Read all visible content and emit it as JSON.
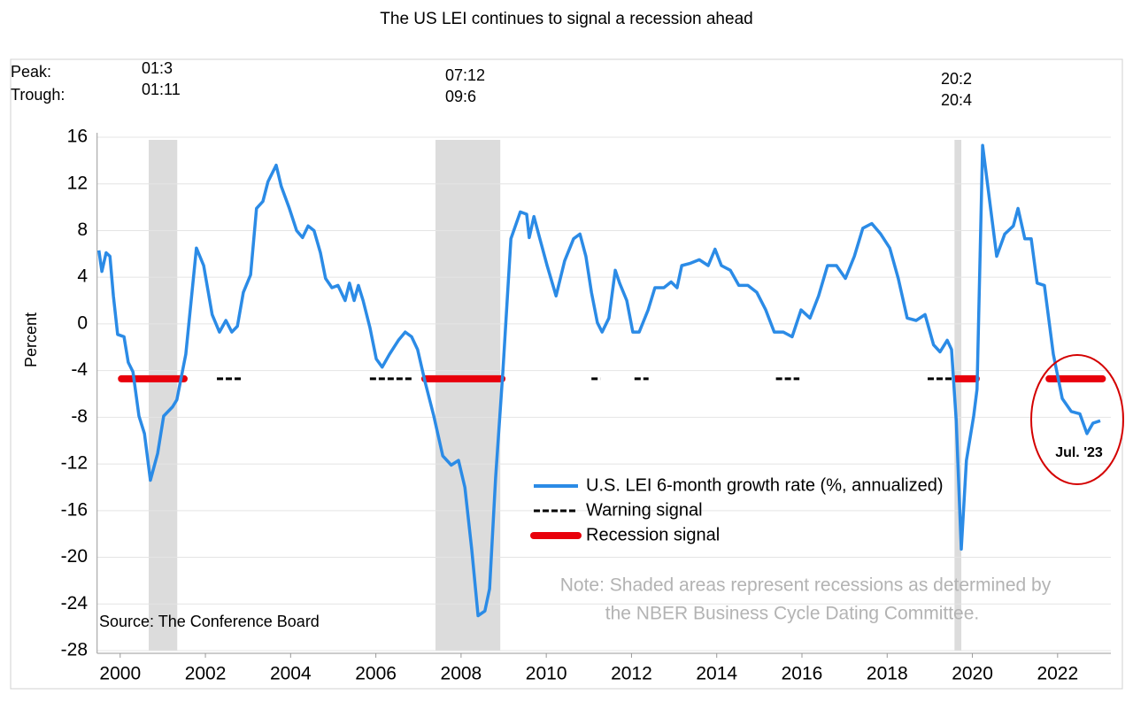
{
  "chart_data": {
    "type": "line",
    "title": "The US LEI continues to signal a recession ahead",
    "ylabel": "Percent",
    "source": "Source: The Conference Board",
    "note": [
      "Note: Shaded areas represent recessions as determined by",
      "the NBER Business Cycle Dating Committee."
    ],
    "annotation": "Jul. '23",
    "peak_label": "Peak:",
    "trough_label": "Trough:",
    "recessions": [
      {
        "start": 2001.17,
        "end": 2001.84,
        "peak": "01:3",
        "trough": "01:11"
      },
      {
        "start": 2007.9,
        "end": 2009.42,
        "peak": "07:12",
        "trough": "09:6"
      },
      {
        "start": 2020.08,
        "end": 2020.24,
        "peak": "20:2",
        "trough": "20:4"
      }
    ],
    "xlim": [
      2000,
      2023.75
    ],
    "xticks": [
      {
        "value": 2000.5,
        "label": "2000"
      },
      {
        "value": 2002.5,
        "label": "2002"
      },
      {
        "value": 2004.5,
        "label": "2004"
      },
      {
        "value": 2006.5,
        "label": "2006"
      },
      {
        "value": 2008.5,
        "label": "2008"
      },
      {
        "value": 2010.5,
        "label": "2010"
      },
      {
        "value": 2012.5,
        "label": "2012"
      },
      {
        "value": 2014.5,
        "label": "2014"
      },
      {
        "value": 2016.5,
        "label": "2016"
      },
      {
        "value": 2018.5,
        "label": "2018"
      },
      {
        "value": 2020.5,
        "label": "2020"
      },
      {
        "value": 2022.5,
        "label": "2022"
      }
    ],
    "ylim": [
      -28,
      16
    ],
    "yticks": [
      16,
      12,
      8,
      4,
      0,
      -4,
      -8,
      -12,
      -16,
      -20,
      -24,
      -28
    ],
    "grid": true,
    "series": [
      {
        "name": "U.S. LEI 6-month growth rate (%, annualized)",
        "color": "#2b8be6",
        "x": [
          2000.0,
          2000.07,
          2000.17,
          2000.26,
          2000.34,
          2000.44,
          2000.59,
          2000.69,
          2000.8,
          2000.94,
          2001.07,
          2001.21,
          2001.38,
          2001.52,
          2001.73,
          2001.83,
          2002.04,
          2002.29,
          2002.46,
          2002.66,
          2002.83,
          2002.98,
          2003.12,
          2003.25,
          2003.39,
          2003.56,
          2003.7,
          2003.85,
          2003.97,
          2004.16,
          2004.28,
          2004.47,
          2004.64,
          2004.78,
          2004.91,
          2005.05,
          2005.2,
          2005.32,
          2005.47,
          2005.61,
          2005.78,
          2005.88,
          2005.99,
          2006.09,
          2006.2,
          2006.36,
          2006.51,
          2006.65,
          2006.82,
          2007.03,
          2007.19,
          2007.34,
          2007.48,
          2007.65,
          2007.86,
          2008.07,
          2008.27,
          2008.44,
          2008.59,
          2008.75,
          2008.9,
          2009.06,
          2009.17,
          2009.31,
          2009.48,
          2009.67,
          2009.89,
          2010.04,
          2010.1,
          2010.21,
          2010.35,
          2010.52,
          2010.73,
          2010.93,
          2011.14,
          2011.29,
          2011.43,
          2011.56,
          2011.7,
          2011.81,
          2011.97,
          2012.12,
          2012.22,
          2012.39,
          2012.53,
          2012.68,
          2012.89,
          2013.05,
          2013.26,
          2013.43,
          2013.57,
          2013.68,
          2013.88,
          2014.09,
          2014.3,
          2014.46,
          2014.61,
          2014.82,
          2015.02,
          2015.23,
          2015.44,
          2015.65,
          2015.85,
          2016.06,
          2016.27,
          2016.48,
          2016.69,
          2016.89,
          2017.1,
          2017.31,
          2017.52,
          2017.73,
          2017.93,
          2018.14,
          2018.35,
          2018.56,
          2018.76,
          2018.97,
          2019.18,
          2019.39,
          2019.59,
          2019.74,
          2019.91,
          2020.01,
          2020.12,
          2020.24,
          2020.36,
          2020.53,
          2020.61,
          2020.74,
          2020.9,
          2021.07,
          2021.26,
          2021.46,
          2021.57,
          2021.73,
          2021.88,
          2022.02,
          2022.19,
          2022.4,
          2022.61,
          2022.82,
          2023.02,
          2023.19,
          2023.33,
          2023.5
        ],
        "values": [
          6.3,
          4.5,
          6.1,
          5.8,
          2.4,
          -0.9,
          -1.1,
          -3.3,
          -4.1,
          -7.9,
          -9.4,
          -13.4,
          -11.1,
          -7.9,
          -7.1,
          -6.5,
          -2.6,
          6.5,
          5.0,
          0.8,
          -0.7,
          0.3,
          -0.7,
          -0.2,
          2.7,
          4.2,
          9.9,
          10.5,
          12.2,
          13.6,
          11.8,
          9.9,
          8.0,
          7.4,
          8.4,
          8.0,
          6.1,
          3.9,
          3.1,
          3.3,
          2.0,
          3.5,
          2.0,
          3.3,
          2.0,
          -0.3,
          -3.0,
          -3.7,
          -2.6,
          -1.4,
          -0.7,
          -1.1,
          -2.2,
          -4.9,
          -7.9,
          -11.3,
          -12.1,
          -11.7,
          -14.0,
          -19.3,
          -25.0,
          -24.6,
          -22.7,
          -13.2,
          -4.1,
          7.3,
          9.6,
          9.4,
          7.4,
          9.2,
          7.3,
          5.0,
          2.4,
          5.4,
          7.3,
          7.7,
          5.8,
          2.7,
          0.1,
          -0.7,
          0.5,
          4.6,
          3.5,
          2.0,
          -0.7,
          -0.7,
          1.2,
          3.1,
          3.1,
          3.6,
          3.1,
          5.0,
          5.2,
          5.5,
          5.0,
          6.4,
          5.0,
          4.6,
          3.3,
          3.3,
          2.7,
          1.2,
          -0.7,
          -0.7,
          -1.1,
          1.2,
          0.5,
          2.4,
          5.0,
          5.0,
          3.9,
          5.8,
          8.2,
          8.6,
          7.7,
          6.5,
          3.9,
          0.5,
          0.3,
          0.8,
          -1.8,
          -2.4,
          -1.4,
          -2.2,
          -8.3,
          -19.3,
          -11.7,
          -7.9,
          -5.6,
          15.3,
          10.7,
          5.8,
          7.7,
          8.4,
          9.9,
          7.3,
          7.3,
          3.5,
          3.3,
          -2.6,
          -6.4,
          -7.5,
          -7.7,
          -9.4,
          -8.5,
          -8.3
        ]
      },
      {
        "name": "Warning signal",
        "color": "#000000",
        "level": -4.7,
        "periods": [
          [
            2002.77,
            2003.33
          ],
          [
            2006.36,
            2007.34
          ],
          [
            2011.56,
            2011.77
          ],
          [
            2012.57,
            2012.9
          ],
          [
            2015.89,
            2016.44
          ],
          [
            2019.45,
            2020.07
          ]
        ]
      },
      {
        "name": "Recession signal",
        "color": "#e8000b",
        "level": -4.7,
        "periods": [
          [
            2000.53,
            2002.0
          ],
          [
            2007.65,
            2009.46
          ],
          [
            2020.12,
            2020.59
          ],
          [
            2022.3,
            2023.55
          ]
        ]
      }
    ]
  }
}
